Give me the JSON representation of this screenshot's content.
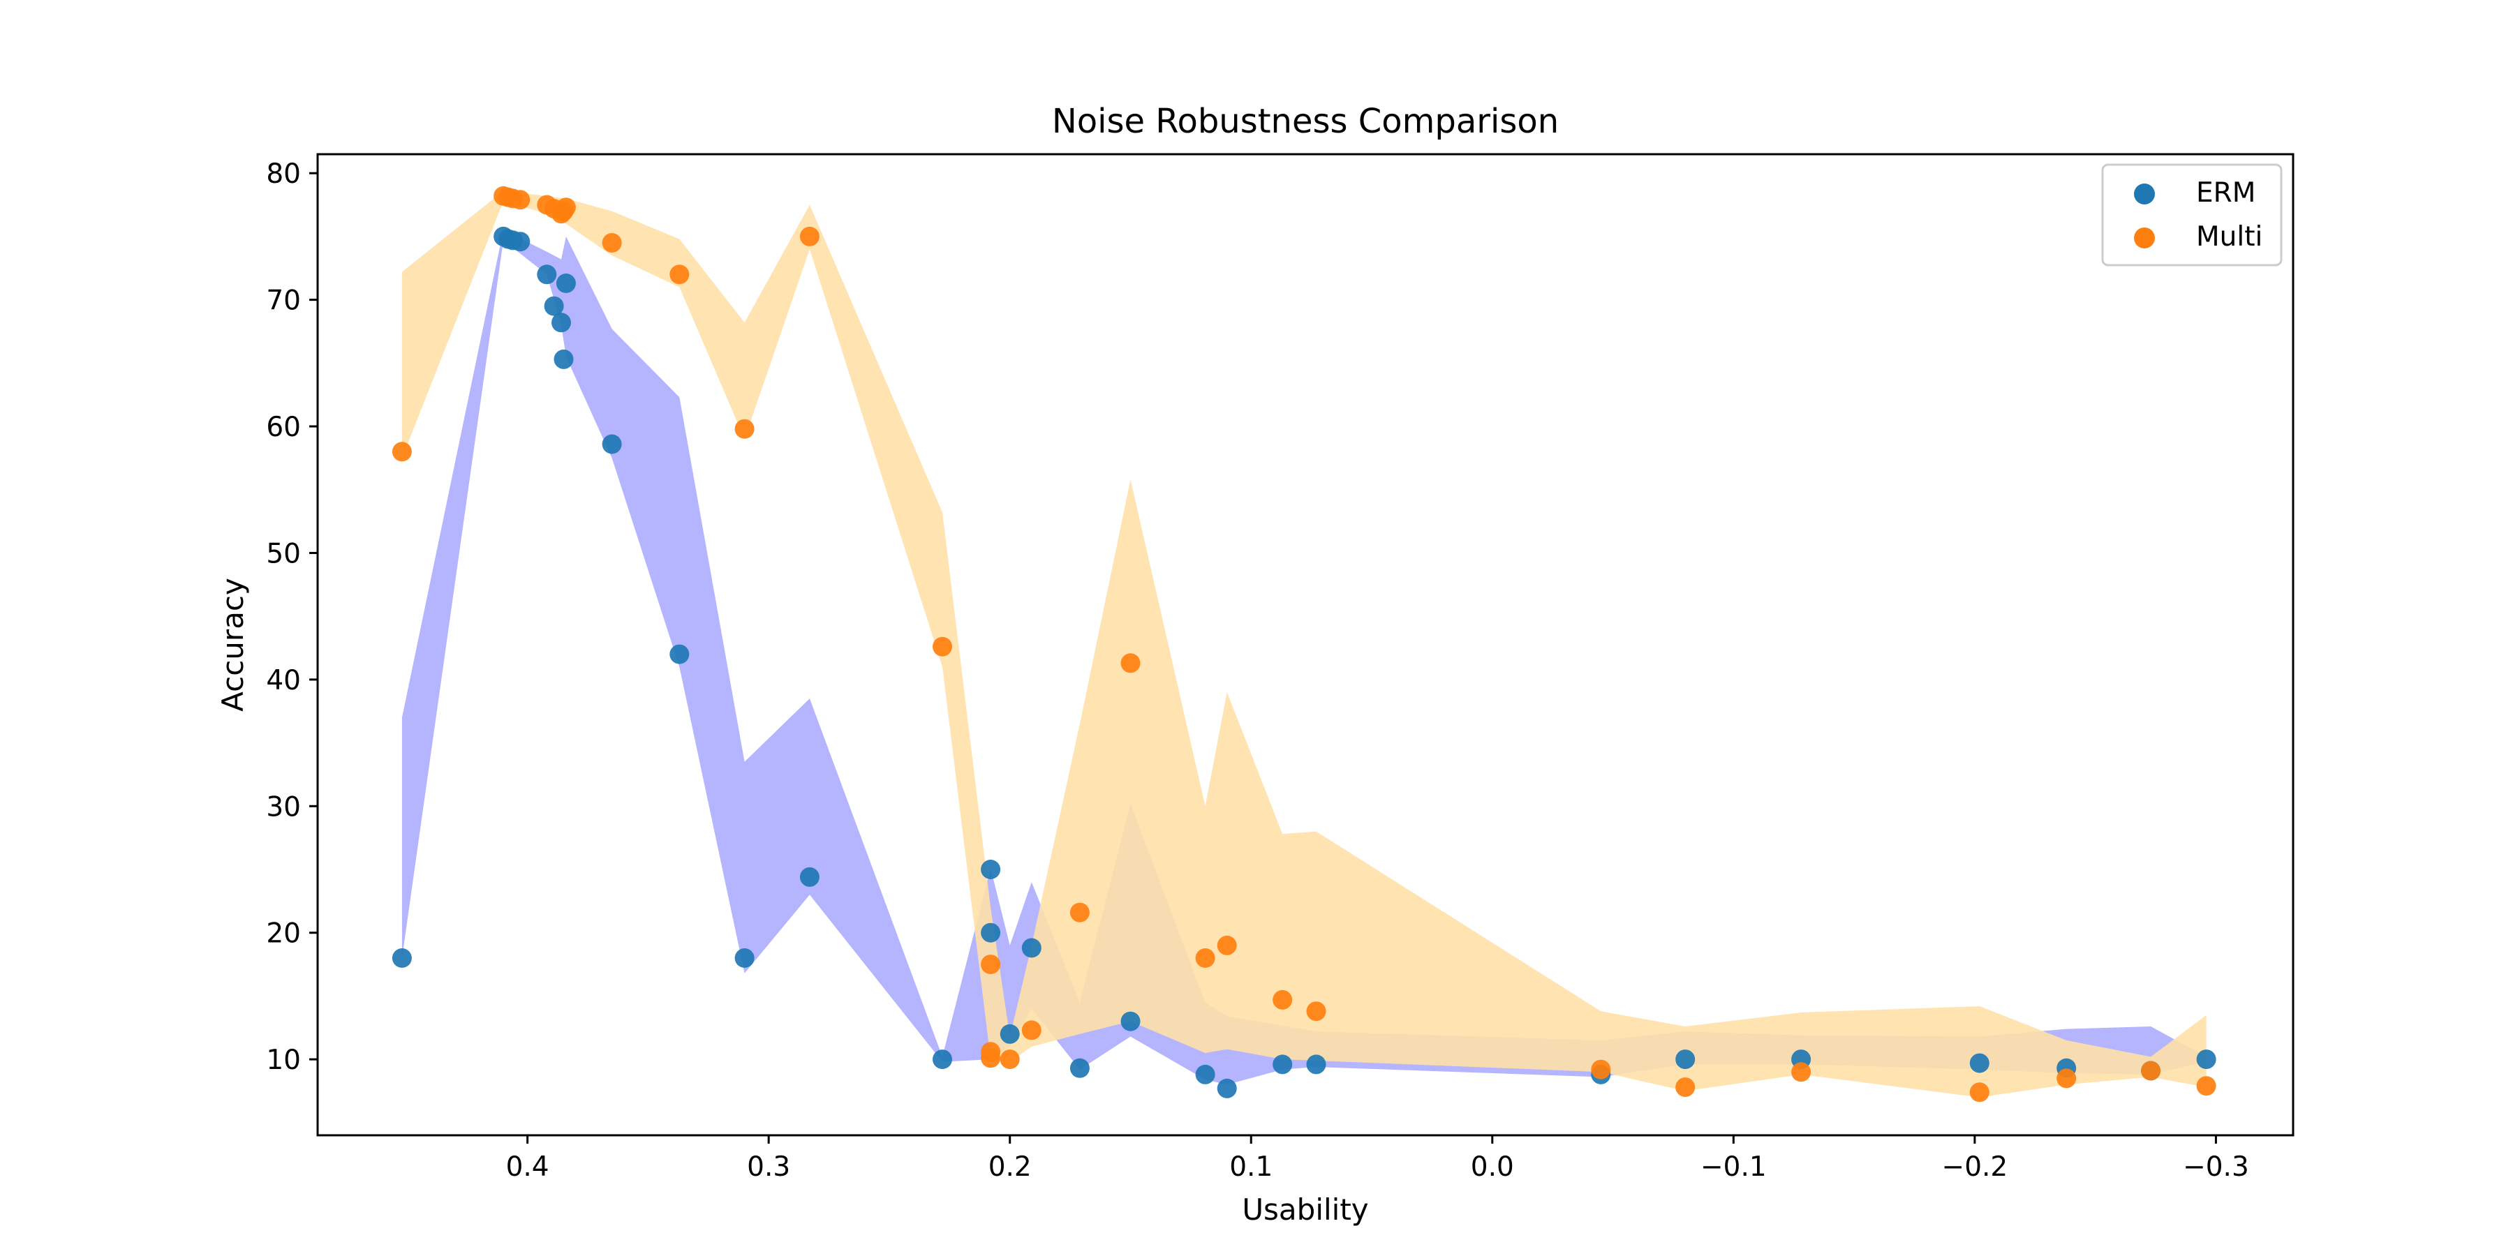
{
  "chart_data": {
    "type": "scatter",
    "title": "Noise Robustness Comparison",
    "xlabel": "Usability",
    "ylabel": "Accuracy",
    "x_reversed": true,
    "xlim": [
      0.487,
      -0.332
    ],
    "ylim": [
      4.0,
      81.5
    ],
    "xticks": [
      0.4,
      0.3,
      0.2,
      0.1,
      0.0,
      -0.1,
      -0.2,
      -0.3
    ],
    "xtick_labels": [
      "0.4",
      "0.3",
      "0.2",
      "0.1",
      "0.0",
      "−0.1",
      "−0.2",
      "−0.3"
    ],
    "yticks": [
      10,
      20,
      30,
      40,
      50,
      60,
      70,
      80
    ],
    "ytick_labels": [
      "10",
      "20",
      "30",
      "40",
      "50",
      "60",
      "70",
      "80"
    ],
    "grid": false,
    "legend_position": "upper right",
    "series": [
      {
        "name": "ERM",
        "color": "#1f77b4",
        "band_color": "#7777ff",
        "points": [
          [
            0.452,
            18.0
          ],
          [
            0.41,
            75.0
          ],
          [
            0.408,
            74.8
          ],
          [
            0.406,
            74.7
          ],
          [
            0.403,
            74.6
          ],
          [
            0.392,
            72.0
          ],
          [
            0.389,
            69.5
          ],
          [
            0.386,
            68.2
          ],
          [
            0.385,
            65.3
          ],
          [
            0.384,
            71.3
          ],
          [
            0.365,
            58.6
          ],
          [
            0.337,
            42.0
          ],
          [
            0.31,
            18.0
          ],
          [
            0.283,
            24.4
          ],
          [
            0.228,
            10.0
          ],
          [
            0.208,
            25.0
          ],
          [
            0.208,
            20.0
          ],
          [
            0.2,
            12.0
          ],
          [
            0.191,
            18.8
          ],
          [
            0.171,
            9.3
          ],
          [
            0.15,
            13.0
          ],
          [
            0.119,
            8.8
          ],
          [
            0.11,
            7.7
          ],
          [
            0.087,
            9.6
          ],
          [
            0.073,
            9.6
          ],
          [
            -0.045,
            8.8
          ],
          [
            -0.08,
            10.0
          ],
          [
            -0.128,
            10.0
          ],
          [
            -0.202,
            9.7
          ],
          [
            -0.238,
            9.3
          ],
          [
            -0.273,
            9.1
          ],
          [
            -0.296,
            10.0
          ]
        ],
        "band_upper": [
          [
            0.452,
            37.0
          ],
          [
            0.41,
            75.5
          ],
          [
            0.392,
            73.8
          ],
          [
            0.386,
            73.2
          ],
          [
            0.384,
            75.0
          ],
          [
            0.365,
            67.7
          ],
          [
            0.337,
            62.3
          ],
          [
            0.31,
            33.5
          ],
          [
            0.283,
            38.5
          ],
          [
            0.228,
            10.2
          ],
          [
            0.208,
            25.1
          ],
          [
            0.2,
            19.0
          ],
          [
            0.191,
            24.0
          ],
          [
            0.171,
            14.5
          ],
          [
            0.15,
            30.2
          ],
          [
            0.119,
            14.5
          ],
          [
            0.11,
            13.4
          ],
          [
            0.073,
            12.2
          ],
          [
            -0.045,
            11.5
          ],
          [
            -0.08,
            12.2
          ],
          [
            -0.128,
            11.9
          ],
          [
            -0.202,
            11.8
          ],
          [
            -0.238,
            12.4
          ],
          [
            -0.273,
            12.6
          ],
          [
            -0.296,
            10.2
          ]
        ],
        "band_lower": [
          [
            0.452,
            18.0
          ],
          [
            0.41,
            74.7
          ],
          [
            0.392,
            72.0
          ],
          [
            0.386,
            68.0
          ],
          [
            0.384,
            65.5
          ],
          [
            0.365,
            57.5
          ],
          [
            0.337,
            41.0
          ],
          [
            0.31,
            16.8
          ],
          [
            0.283,
            23.0
          ],
          [
            0.228,
            9.8
          ],
          [
            0.208,
            10.0
          ],
          [
            0.2,
            11.0
          ],
          [
            0.191,
            14.0
          ],
          [
            0.171,
            9.2
          ],
          [
            0.15,
            11.8
          ],
          [
            0.119,
            8.4
          ],
          [
            0.11,
            8.0
          ],
          [
            0.087,
            9.2
          ],
          [
            0.073,
            9.4
          ],
          [
            -0.045,
            8.6
          ],
          [
            -0.08,
            9.6
          ],
          [
            -0.128,
            9.6
          ],
          [
            -0.202,
            9.2
          ],
          [
            -0.238,
            8.9
          ],
          [
            -0.273,
            8.8
          ],
          [
            -0.296,
            9.8
          ]
        ]
      },
      {
        "name": "Multi",
        "color": "#ff7f0e",
        "band_color": "#ffe0a8",
        "points": [
          [
            0.452,
            58.0
          ],
          [
            0.41,
            78.2
          ],
          [
            0.408,
            78.1
          ],
          [
            0.406,
            78.0
          ],
          [
            0.403,
            77.9
          ],
          [
            0.392,
            77.5
          ],
          [
            0.389,
            77.2
          ],
          [
            0.386,
            76.8
          ],
          [
            0.385,
            77.0
          ],
          [
            0.384,
            77.3
          ],
          [
            0.365,
            74.5
          ],
          [
            0.337,
            72.0
          ],
          [
            0.31,
            59.8
          ],
          [
            0.283,
            75.0
          ],
          [
            0.228,
            42.6
          ],
          [
            0.208,
            17.5
          ],
          [
            0.208,
            10.6
          ],
          [
            0.208,
            10.1
          ],
          [
            0.2,
            10.0
          ],
          [
            0.191,
            12.3
          ],
          [
            0.171,
            21.6
          ],
          [
            0.15,
            41.3
          ],
          [
            0.119,
            18.0
          ],
          [
            0.11,
            19.0
          ],
          [
            0.087,
            14.7
          ],
          [
            0.073,
            13.8
          ],
          [
            -0.045,
            9.2
          ],
          [
            -0.08,
            7.8
          ],
          [
            -0.128,
            9.0
          ],
          [
            -0.202,
            7.4
          ],
          [
            -0.238,
            8.5
          ],
          [
            -0.273,
            9.1
          ],
          [
            -0.296,
            7.9
          ]
        ],
        "band_upper": [
          [
            0.452,
            72.2
          ],
          [
            0.41,
            78.6
          ],
          [
            0.392,
            78.2
          ],
          [
            0.384,
            78.0
          ],
          [
            0.365,
            77.0
          ],
          [
            0.337,
            74.8
          ],
          [
            0.31,
            68.2
          ],
          [
            0.283,
            77.5
          ],
          [
            0.228,
            53.2
          ],
          [
            0.208,
            22.0
          ],
          [
            0.2,
            11.8
          ],
          [
            0.191,
            19.0
          ],
          [
            0.171,
            36.5
          ],
          [
            0.15,
            55.8
          ],
          [
            0.119,
            30.0
          ],
          [
            0.11,
            39.0
          ],
          [
            0.087,
            27.8
          ],
          [
            0.073,
            28.0
          ],
          [
            -0.045,
            13.8
          ],
          [
            -0.08,
            12.6
          ],
          [
            -0.128,
            13.7
          ],
          [
            -0.202,
            14.2
          ],
          [
            -0.238,
            11.5
          ],
          [
            -0.273,
            10.2
          ],
          [
            -0.296,
            13.5
          ]
        ],
        "band_lower": [
          [
            0.452,
            57.5
          ],
          [
            0.41,
            77.8
          ],
          [
            0.392,
            76.8
          ],
          [
            0.384,
            76.0
          ],
          [
            0.365,
            73.5
          ],
          [
            0.337,
            71.0
          ],
          [
            0.31,
            59.0
          ],
          [
            0.283,
            74.0
          ],
          [
            0.228,
            41.0
          ],
          [
            0.208,
            10.0
          ],
          [
            0.2,
            9.8
          ],
          [
            0.191,
            11.0
          ],
          [
            0.171,
            12.0
          ],
          [
            0.15,
            13.0
          ],
          [
            0.119,
            10.5
          ],
          [
            0.11,
            10.8
          ],
          [
            0.087,
            10.0
          ],
          [
            0.073,
            9.9
          ],
          [
            -0.045,
            9.0
          ],
          [
            -0.08,
            7.5
          ],
          [
            -0.128,
            8.8
          ],
          [
            -0.202,
            7.0
          ],
          [
            -0.238,
            8.0
          ],
          [
            -0.273,
            8.6
          ],
          [
            -0.296,
            7.8
          ]
        ]
      }
    ]
  }
}
